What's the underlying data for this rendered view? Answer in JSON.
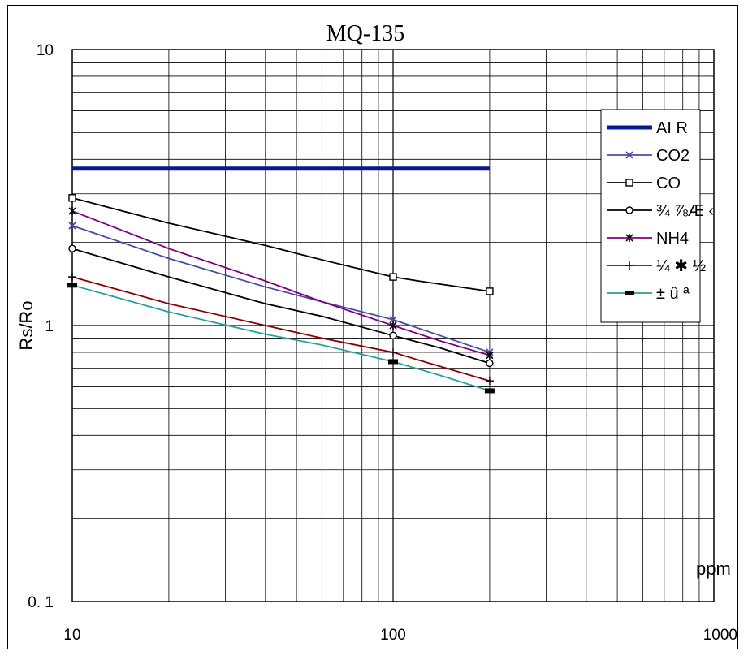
{
  "chart_data": {
    "type": "line",
    "title": "MQ-135",
    "xlabel": "ppm",
    "ylabel": "Rs/Ro",
    "xscale": "log",
    "yscale": "log",
    "xlim": [
      10,
      1000
    ],
    "ylim": [
      0.1,
      10
    ],
    "x_tick_labels": [
      "10",
      "100",
      "1000"
    ],
    "y_tick_labels": [
      "0. 1",
      "1",
      "10"
    ],
    "grid": true,
    "legend": "top-right",
    "series": [
      {
        "name": "AIR",
        "label": "AI R",
        "color": "#0a1a8c",
        "marker": "none",
        "width": 5,
        "x": [
          10,
          200
        ],
        "y": [
          3.7,
          3.7
        ]
      },
      {
        "name": "CO2",
        "label": "CO2",
        "color": "#4b4ba8",
        "marker": "x",
        "x": [
          10,
          20,
          40,
          60,
          100,
          140,
          200
        ],
        "y": [
          2.3,
          1.75,
          1.38,
          1.22,
          1.05,
          0.92,
          0.8
        ]
      },
      {
        "name": "CO",
        "label": "CO",
        "color": "#000000",
        "marker": "square",
        "x": [
          10,
          20,
          40,
          60,
          100,
          120,
          200
        ],
        "y": [
          2.9,
          2.35,
          1.95,
          1.73,
          1.5,
          1.45,
          1.33
        ]
      },
      {
        "name": "series-4",
        "label": "¾ ⅞Æ ‹",
        "color": "#000000",
        "marker": "circle",
        "x": [
          10,
          20,
          40,
          60,
          100,
          140,
          200
        ],
        "y": [
          1.9,
          1.5,
          1.2,
          1.08,
          0.92,
          0.83,
          0.73
        ]
      },
      {
        "name": "NH4",
        "label": "NH4",
        "color": "#800080",
        "marker": "star",
        "x": [
          10,
          20,
          40,
          60,
          100,
          140,
          200
        ],
        "y": [
          2.6,
          1.9,
          1.45,
          1.22,
          1.0,
          0.88,
          0.78
        ]
      },
      {
        "name": "series-6",
        "label": "¼ ✱ ½",
        "color": "#8b0000",
        "marker": "plus",
        "x": [
          10,
          20,
          40,
          60,
          100,
          120,
          200
        ],
        "y": [
          1.5,
          1.2,
          1.0,
          0.9,
          0.8,
          0.75,
          0.63
        ]
      },
      {
        "name": "series-7",
        "label": "± û ª",
        "color": "#2a9d9d",
        "marker": "bar",
        "x": [
          10,
          20,
          40,
          60,
          100,
          140,
          200
        ],
        "y": [
          1.4,
          1.12,
          0.93,
          0.85,
          0.74,
          0.66,
          0.58
        ]
      }
    ]
  }
}
